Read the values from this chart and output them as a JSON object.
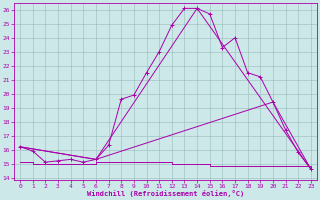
{
  "xlabel": "Windchill (Refroidissement éolien,°C)",
  "background_color": "#cce8e8",
  "grid_color": "#aacccc",
  "line_color": "#aa00aa",
  "xlim": [
    -0.5,
    23.5
  ],
  "ylim": [
    13.8,
    26.5
  ],
  "yticks": [
    14,
    15,
    16,
    17,
    18,
    19,
    20,
    21,
    22,
    23,
    24,
    25,
    26
  ],
  "xticks": [
    0,
    1,
    2,
    3,
    4,
    5,
    6,
    7,
    8,
    9,
    10,
    11,
    12,
    13,
    14,
    15,
    16,
    17,
    18,
    19,
    20,
    21,
    22,
    23
  ],
  "line1_x": [
    0,
    1,
    2,
    3,
    4,
    5,
    6,
    7,
    8,
    9,
    10,
    11,
    12,
    13,
    14,
    15,
    16,
    17,
    18,
    19,
    20,
    21,
    22,
    23
  ],
  "line1_y": [
    16.2,
    15.9,
    15.1,
    15.2,
    15.3,
    15.1,
    15.3,
    16.3,
    19.6,
    19.9,
    21.5,
    23.0,
    24.9,
    26.1,
    26.1,
    25.7,
    23.3,
    24.0,
    21.5,
    21.2,
    19.4,
    17.4,
    15.8,
    14.6
  ],
  "line2_x": [
    0,
    6,
    14,
    23
  ],
  "line2_y": [
    16.2,
    15.3,
    26.1,
    14.6
  ],
  "line3_x": [
    0,
    6,
    20,
    23
  ],
  "line3_y": [
    16.2,
    15.3,
    19.4,
    14.6
  ],
  "line4_x": [
    0,
    1,
    2,
    3,
    4,
    5,
    6,
    7,
    8,
    9,
    10,
    11,
    12,
    13,
    14,
    15,
    16,
    17,
    18,
    19,
    20,
    21,
    22,
    23
  ],
  "line4_y": [
    15.1,
    15.0,
    15.0,
    15.0,
    15.0,
    15.0,
    15.1,
    15.1,
    15.1,
    15.1,
    15.1,
    15.1,
    15.0,
    15.0,
    15.0,
    14.8,
    14.8,
    14.8,
    14.8,
    14.8,
    14.8,
    14.8,
    14.8,
    14.6
  ]
}
